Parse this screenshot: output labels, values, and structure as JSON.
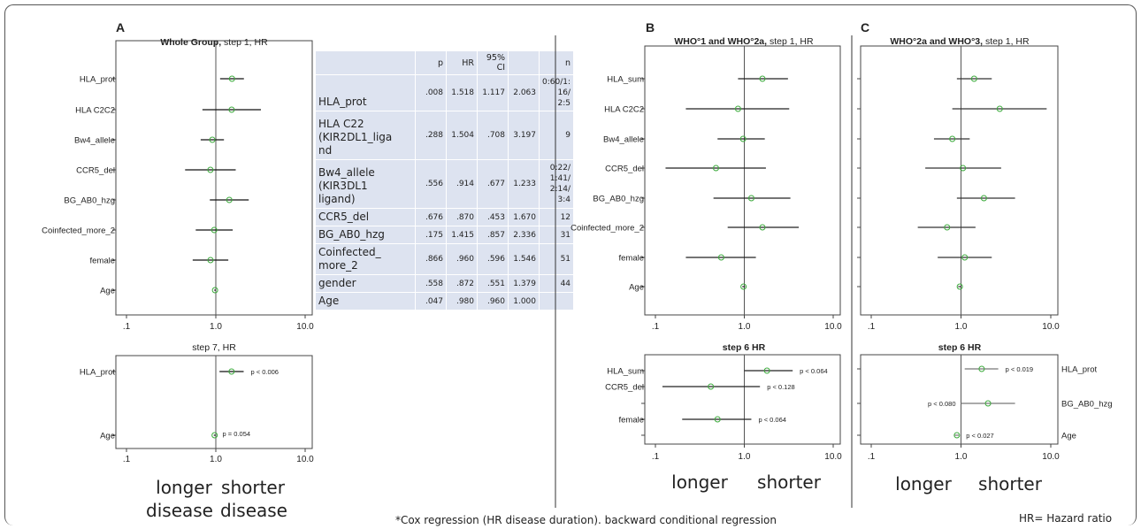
{
  "panels": [
    {
      "id": "A",
      "letter": "A",
      "title_bold": "Whole Group,",
      "title_rest": " step 1, HR"
    },
    {
      "id": "B",
      "letter": "B",
      "title_bold": "WHO°1 and WHO°2a,",
      "title_rest": " step 1, HR"
    },
    {
      "id": "C",
      "letter": "C",
      "title_bold": "WHO°2a and WHO°3,",
      "title_rest": " step 1, HR"
    }
  ],
  "bottom_titles": {
    "A": "step 7, HR",
    "B": "step 6 HR",
    "C": "step 6 HR"
  },
  "direction_labels": {
    "A_left_1": "longer",
    "A_right_1": "shorter",
    "A_left_2": "disease",
    "A_right_2": "disease",
    "B_left": "longer",
    "B_right": "shorter",
    "C_left": "longer",
    "C_right": "shorter"
  },
  "table": {
    "headers": [
      "",
      "p",
      "HR",
      "95% CI",
      "",
      "n"
    ],
    "rows": [
      {
        "label": "HLA_prot",
        "p": ".008",
        "hr": "1.518",
        "lo": "1.117",
        "hi": "2.063",
        "n": "0:60/1:\n16/\n2:5"
      },
      {
        "label": "HLA C22\n(KIR2DL1_liga\nnd",
        "p": ".288",
        "hr": "1.504",
        "lo": ".708",
        "hi": "3.197",
        "n": "9"
      },
      {
        "label": "Bw4_allele\n(KIR3DL1\nligand)",
        "p": ".556",
        "hr": ".914",
        "lo": ".677",
        "hi": "1.233",
        "n": "0:22/\n1:41/\n2:14/\n3:4"
      },
      {
        "label": "CCR5_del",
        "p": ".676",
        "hr": ".870",
        "lo": ".453",
        "hi": "1.670",
        "n": "12"
      },
      {
        "label": "BG_AB0_hzg",
        "p": ".175",
        "hr": "1.415",
        "lo": ".857",
        "hi": "2.336",
        "n": "31"
      },
      {
        "label": "Coinfected_\nmore_2",
        "p": ".866",
        "hr": ".960",
        "lo": ".596",
        "hi": "1.546",
        "n": "51"
      },
      {
        "label": "gender",
        "p": ".558",
        "hr": ".872",
        "lo": ".551",
        "hi": "1.379",
        "n": "44"
      },
      {
        "label": "Age",
        "p": ".047",
        "hr": ".980",
        "lo": ".960",
        "hi": "1.000",
        "n": ""
      }
    ]
  },
  "footnote": "*Cox regression (HR disease duration). backward conditional regression",
  "legend_note": "HR= Hazard ratio",
  "chart_data": [
    {
      "type": "scatter",
      "subtype": "forest",
      "panel": "A",
      "title": "Whole Group, step 1, HR",
      "xscale": "log",
      "xlim": [
        0.1,
        10
      ],
      "ticks": [
        ".1",
        "1.0",
        "10.0"
      ],
      "reference_line": 1,
      "rows": [
        {
          "label": "HLA_prot",
          "hr": 1.518,
          "lo": 1.117,
          "hi": 2.063
        },
        {
          "label": "HLA C2C2",
          "hr": 1.504,
          "lo": 0.708,
          "hi": 3.197
        },
        {
          "label": "Bw4_allele",
          "hr": 0.914,
          "lo": 0.677,
          "hi": 1.233
        },
        {
          "label": "CCR5_del",
          "hr": 0.87,
          "lo": 0.453,
          "hi": 1.67
        },
        {
          "label": "BG_AB0_hzg",
          "hr": 1.415,
          "lo": 0.857,
          "hi": 2.336
        },
        {
          "label": "Coinfected_more_2",
          "hr": 0.96,
          "lo": 0.596,
          "hi": 1.546
        },
        {
          "label": "female",
          "hr": 0.872,
          "lo": 0.551,
          "hi": 1.379
        },
        {
          "label": "Age",
          "hr": 0.98,
          "lo": 0.96,
          "hi": 1.0
        }
      ]
    },
    {
      "type": "scatter",
      "subtype": "forest",
      "panel": "A2",
      "title": "step 7, HR",
      "xscale": "log",
      "xlim": [
        0.1,
        10
      ],
      "ticks": [
        ".1",
        "1.0",
        "10.0"
      ],
      "reference_line": 1,
      "rows": [
        {
          "label": "HLA_prot",
          "hr": 1.5,
          "lo": 1.1,
          "hi": 2.05,
          "annotation": "p < 0.006"
        },
        {
          "label": "Age",
          "hr": 0.97,
          "lo": 0.95,
          "hi": 0.99,
          "annotation": "p = 0.054"
        }
      ]
    },
    {
      "type": "scatter",
      "subtype": "forest",
      "panel": "B",
      "title": "WHO°1 and WHO°2a, step 1, HR",
      "xscale": "log",
      "xlim": [
        0.1,
        10
      ],
      "ticks": [
        ".1",
        "1.0",
        "10.0"
      ],
      "reference_line": 1,
      "rows": [
        {
          "label": "HLA_sum",
          "hr": 1.6,
          "lo": 0.85,
          "hi": 3.1
        },
        {
          "label": "HLA C2C2",
          "hr": 0.85,
          "lo": 0.22,
          "hi": 3.2
        },
        {
          "label": "Bw4_allele",
          "hr": 0.97,
          "lo": 0.5,
          "hi": 1.7
        },
        {
          "label": "CCR5_del",
          "hr": 0.48,
          "lo": 0.13,
          "hi": 1.75
        },
        {
          "label": "BG_AB0_hzg",
          "hr": 1.2,
          "lo": 0.45,
          "hi": 3.3
        },
        {
          "label": "Coinfected_more_2",
          "hr": 1.6,
          "lo": 0.65,
          "hi": 4.1
        },
        {
          "label": "female",
          "hr": 0.55,
          "lo": 0.22,
          "hi": 1.35
        },
        {
          "label": "Age",
          "hr": 0.98,
          "lo": 0.95,
          "hi": 1.02
        }
      ]
    },
    {
      "type": "scatter",
      "subtype": "forest",
      "panel": "B2",
      "title": "step 6 HR",
      "xscale": "log",
      "xlim": [
        0.1,
        10
      ],
      "ticks": [
        ".1",
        "1.0",
        "10.0"
      ],
      "reference_line": 1,
      "rows": [
        {
          "label": "HLA_sum",
          "hr": 1.8,
          "lo": 1.0,
          "hi": 3.5,
          "annotation": "p < 0.064"
        },
        {
          "label": "CCR5_del",
          "hr": 0.42,
          "lo": 0.12,
          "hi": 1.5,
          "annotation": "p < 0.128"
        },
        {
          "label": "",
          "hr": null,
          "lo": null,
          "hi": null
        },
        {
          "label": "female",
          "hr": 0.5,
          "lo": 0.2,
          "hi": 1.2,
          "annotation": "p < 0.064"
        },
        {
          "label": "",
          "hr": null,
          "lo": null,
          "hi": null
        }
      ]
    },
    {
      "type": "scatter",
      "subtype": "forest",
      "panel": "C",
      "title": "WHO°2a and WHO°3, step 1, HR",
      "xscale": "log",
      "xlim": [
        0.1,
        10
      ],
      "ticks": [
        ".1",
        "1.0",
        "10.0"
      ],
      "reference_line": 1,
      "rows": [
        {
          "label": "",
          "hr": 1.4,
          "lo": 0.9,
          "hi": 2.2
        },
        {
          "label": "",
          "hr": 2.7,
          "lo": 0.8,
          "hi": 9.0
        },
        {
          "label": "",
          "hr": 0.8,
          "lo": 0.5,
          "hi": 1.25
        },
        {
          "label": "",
          "hr": 1.05,
          "lo": 0.4,
          "hi": 2.8
        },
        {
          "label": "",
          "hr": 1.8,
          "lo": 0.9,
          "hi": 4.0
        },
        {
          "label": "",
          "hr": 0.7,
          "lo": 0.33,
          "hi": 1.45
        },
        {
          "label": "",
          "hr": 1.1,
          "lo": 0.55,
          "hi": 2.2
        },
        {
          "label": "",
          "hr": 0.97,
          "lo": 0.93,
          "hi": 1.01
        }
      ]
    },
    {
      "type": "scatter",
      "subtype": "forest",
      "panel": "C2",
      "title": "step 6 HR",
      "xscale": "log",
      "xlim": [
        0.1,
        10
      ],
      "ticks": [
        ".1",
        "1.0",
        "10.0"
      ],
      "reference_line": 1,
      "rows": [
        {
          "label": "HLA_prot",
          "hr": 1.7,
          "lo": 1.1,
          "hi": 2.6,
          "annotation": "p < 0.019"
        },
        {
          "label": "BG_AB0_hzg",
          "hr": 2.0,
          "lo": 1.0,
          "hi": 4.0,
          "annotation": "p < 0.080",
          "annotation_side": "left"
        },
        {
          "label": "Age",
          "hr": 0.9,
          "lo": 0.85,
          "hi": 0.95,
          "annotation": "p < 0.027"
        }
      ]
    }
  ]
}
